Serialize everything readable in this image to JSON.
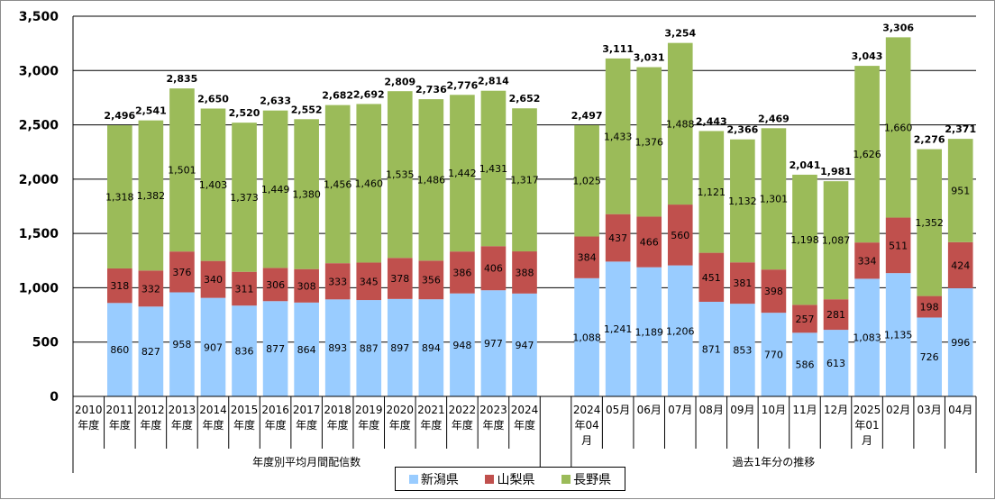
{
  "chart_data": {
    "type": "bar",
    "stacked": true,
    "categories": [
      "2010\n年度",
      "2011\n年度",
      "2012\n年度",
      "2013\n年度",
      "2014\n年度",
      "2015\n年度",
      "2016\n年度",
      "2017\n年度",
      "2018\n年度",
      "2019\n年度",
      "2020\n年度",
      "2021\n年度",
      "2022\n年度",
      "2023\n年度",
      "2024\n年度",
      "",
      "2024\n年04\n月",
      "05月",
      "06月",
      "07月",
      "08月",
      "09月",
      "10月",
      "11月",
      "12月",
      "2025\n年01\n月",
      "02月",
      "03月",
      "04月"
    ],
    "series": [
      {
        "name": "新潟県",
        "color": "#99ccff",
        "values": [
          null,
          860,
          827,
          958,
          907,
          836,
          877,
          864,
          893,
          887,
          897,
          894,
          948,
          977,
          947,
          null,
          1088,
          1241,
          1189,
          1206,
          871,
          853,
          770,
          586,
          613,
          1083,
          1135,
          726,
          996
        ]
      },
      {
        "name": "山梨県",
        "color": "#c0504d",
        "values": [
          null,
          318,
          332,
          376,
          340,
          311,
          306,
          308,
          333,
          345,
          378,
          356,
          386,
          406,
          388,
          null,
          384,
          437,
          466,
          560,
          451,
          381,
          398,
          257,
          281,
          334,
          511,
          198,
          424
        ]
      },
      {
        "name": "長野県",
        "color": "#9bbb59",
        "values": [
          null,
          1318,
          1382,
          1501,
          1403,
          1373,
          1449,
          1380,
          1456,
          1460,
          1535,
          1486,
          1442,
          1431,
          1317,
          null,
          1025,
          1433,
          1376,
          1488,
          1121,
          1132,
          1301,
          1198,
          1087,
          1626,
          1660,
          1352,
          951
        ]
      }
    ],
    "totals": [
      null,
      2496,
      2541,
      2835,
      2650,
      2520,
      2633,
      2552,
      2682,
      2692,
      2809,
      2736,
      2776,
      2814,
      2652,
      null,
      2497,
      3111,
      3031,
      3254,
      2443,
      2366,
      2469,
      2041,
      1981,
      3043,
      3306,
      2276,
      2371
    ],
    "ylim": [
      0,
      3500
    ],
    "yticks": [
      0,
      500,
      1000,
      1500,
      2000,
      2500,
      3000,
      3500
    ],
    "ytick_labels": [
      "0",
      "500",
      "1,000",
      "1,500",
      "2,000",
      "2,500",
      "3,000",
      "3,500"
    ],
    "group_labels": [
      "年度別平均月間配信数",
      "過去1年分の推移"
    ],
    "grid": true,
    "legend_position": "bottom"
  }
}
